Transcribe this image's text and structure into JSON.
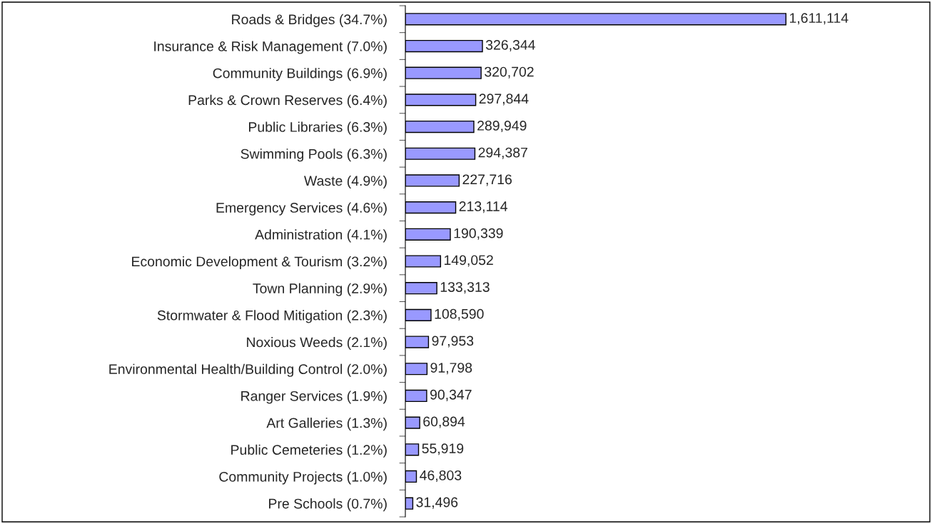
{
  "chart_data": {
    "type": "bar",
    "orientation": "horizontal",
    "categories": [
      "Roads & Bridges (34.7%)",
      "Insurance & Risk Management (7.0%)",
      "Community Buildings (6.9%)",
      "Parks & Crown Reserves (6.4%)",
      "Public Libraries (6.3%)",
      "Swimming Pools (6.3%)",
      "Waste (4.9%)",
      "Emergency Services (4.6%)",
      "Administration (4.1%)",
      "Economic Development & Tourism (3.2%)",
      "Town Planning (2.9%)",
      "Stormwater & Flood Mitigation (2.3%)",
      "Noxious Weeds (2.1%)",
      "Environmental Health/Building Control (2.0%)",
      "Ranger Services (1.9%)",
      "Art Galleries (1.3%)",
      "Public Cemeteries (1.2%)",
      "Community Projects (1.0%)",
      "Pre Schools (0.7%)"
    ],
    "values": [
      1611114,
      326344,
      320702,
      297844,
      289949,
      294387,
      227716,
      213114,
      190339,
      149052,
      133313,
      108590,
      97953,
      91798,
      90347,
      60894,
      55919,
      46803,
      31496
    ],
    "value_labels": [
      "1,611,114",
      "326,344",
      "320,702",
      "297,844",
      "289,949",
      "294,387",
      "227,716",
      "213,114",
      "190,339",
      "149,052",
      "133,313",
      "108,590",
      "97,953",
      "91,798",
      "90,347",
      "60,894",
      "55,919",
      "46,803",
      "31,496"
    ],
    "color": "#9999ff",
    "tick_labels": "y",
    "grid": false,
    "legend": false
  }
}
